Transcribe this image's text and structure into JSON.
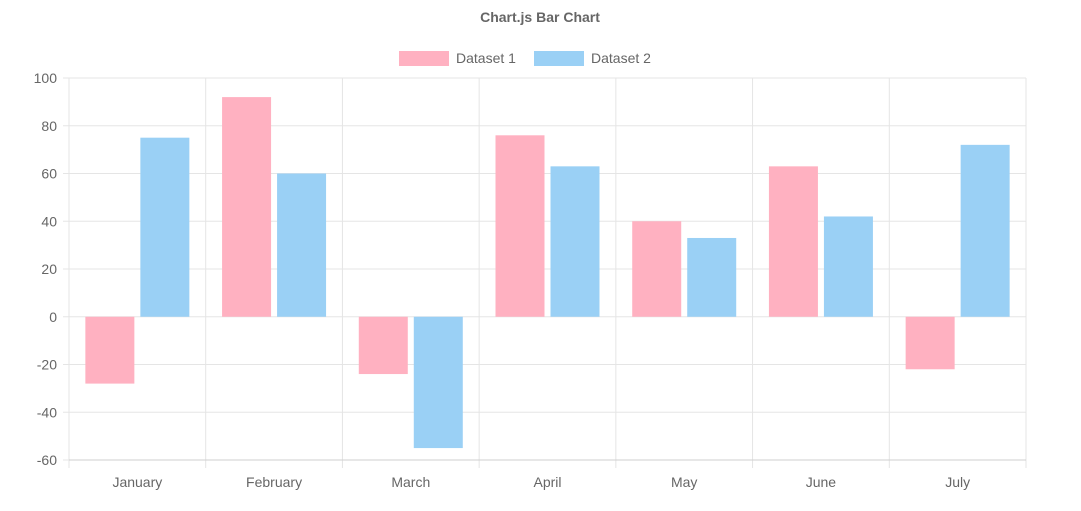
{
  "colors": {
    "dataset1_fill": "#ffb1c1",
    "dataset2_fill": "#9ad0f5",
    "grid": "#e5e5e5",
    "text": "#666666"
  },
  "chart_data": {
    "type": "bar",
    "title": "Chart.js Bar Chart",
    "xlabel": "",
    "ylabel": "",
    "categories": [
      "January",
      "February",
      "March",
      "April",
      "May",
      "June",
      "July"
    ],
    "series": [
      {
        "name": "Dataset 1",
        "values": [
          -28,
          92,
          -24,
          76,
          40,
          63,
          -22
        ]
      },
      {
        "name": "Dataset 2",
        "values": [
          75,
          60,
          -55,
          63,
          33,
          42,
          72
        ]
      }
    ],
    "ylim": [
      -60,
      100
    ],
    "yticks": [
      100,
      80,
      60,
      40,
      20,
      0,
      -20,
      -40,
      -60
    ],
    "grid": true,
    "legend_position": "top"
  }
}
